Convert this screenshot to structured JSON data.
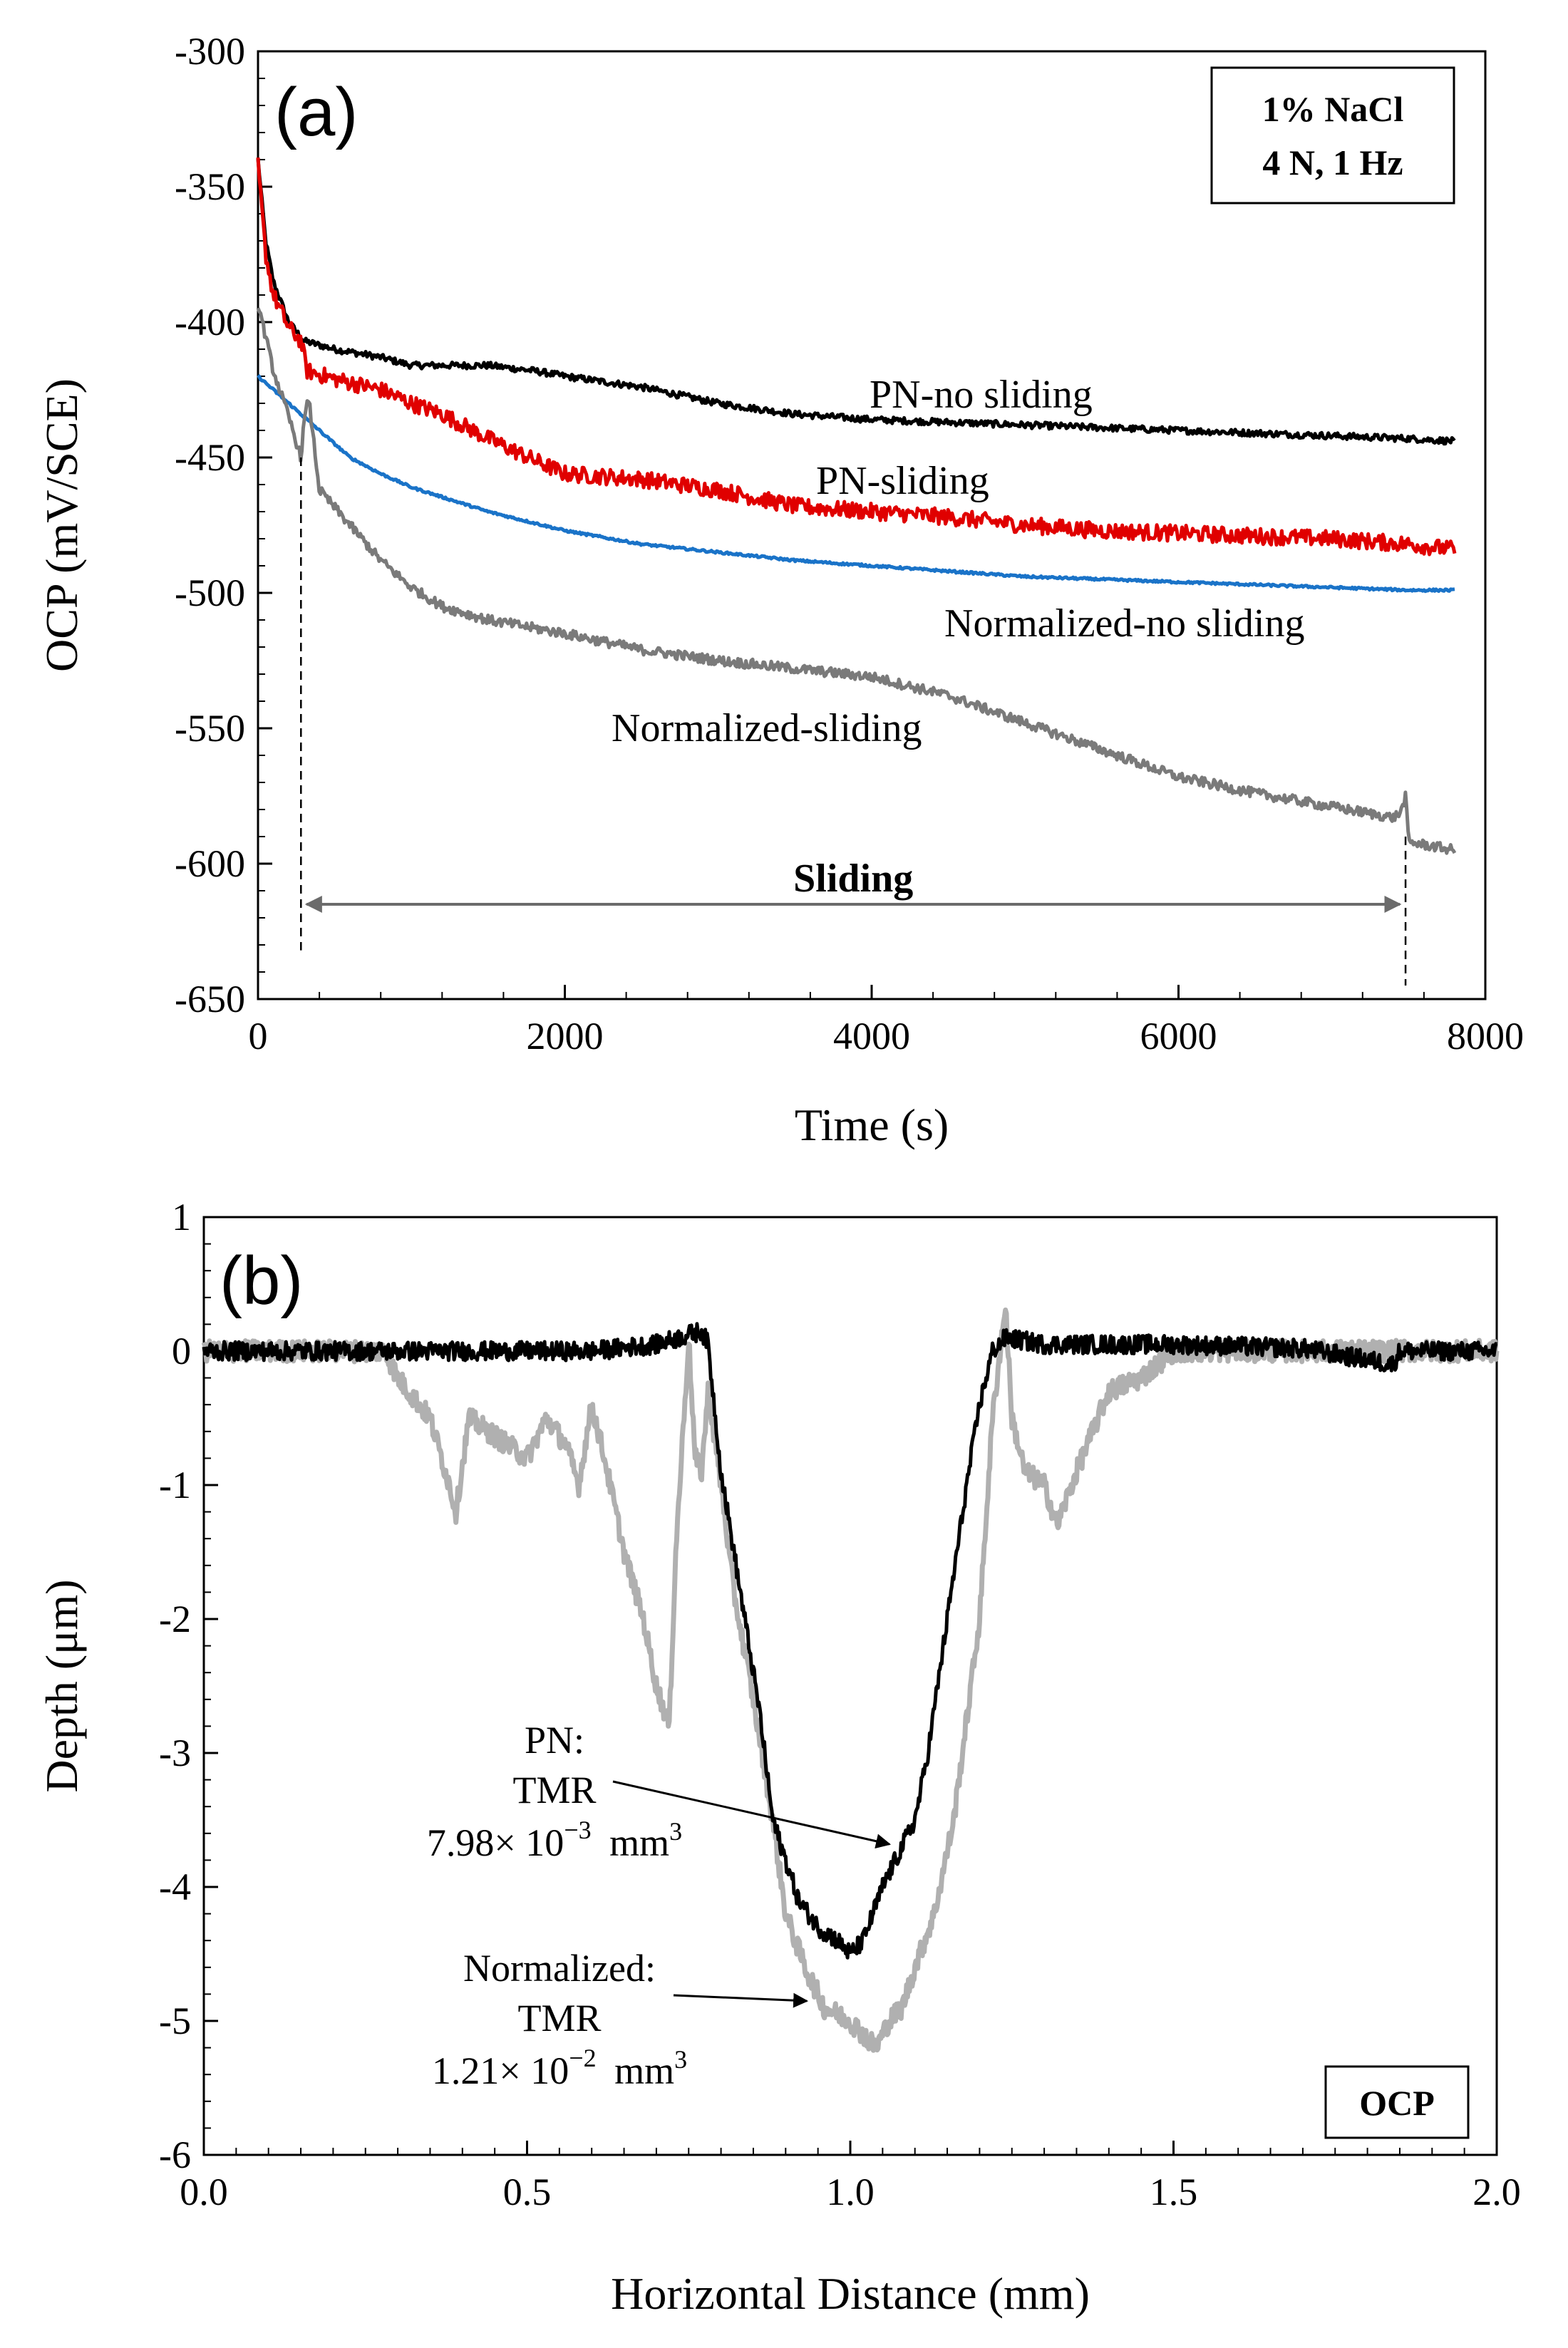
{
  "chart_data": [
    {
      "panel": "(a)",
      "type": "line",
      "xlabel": "Time (s)",
      "ylabel": "OCP (mV/SCE)",
      "xlim": [
        0,
        8000
      ],
      "ylim": [
        -650,
        -300
      ],
      "xticks": [
        0,
        2000,
        4000,
        6000,
        8000
      ],
      "yticks": [
        -300,
        -350,
        -400,
        -450,
        -500,
        -550,
        -600,
        -650
      ],
      "conditions": [
        "1% NaCl",
        "4 N, 1 Hz"
      ],
      "sliding_interval": {
        "label": "Sliding",
        "start": 280,
        "end": 7480
      },
      "series": [
        {
          "name": "PN-no sliding",
          "color": "#000000",
          "x": [
            0,
            50,
            100,
            200,
            300,
            500,
            800,
            1000,
            1200,
            1500,
            1800,
            2000,
            2500,
            3000,
            3500,
            4000,
            4500,
            5000,
            5500,
            6000,
            6500,
            7000,
            7500,
            7800
          ],
          "y": [
            -340,
            -370,
            -385,
            -400,
            -407,
            -410,
            -413,
            -416,
            -416,
            -416,
            -418,
            -420,
            -424,
            -430,
            -434,
            -436,
            -437,
            -438,
            -439,
            -440,
            -441,
            -442,
            -443,
            -444
          ]
        },
        {
          "name": "PN-sliding",
          "color": "#e00000",
          "x": [
            0,
            50,
            100,
            200,
            280,
            320,
            500,
            800,
            1000,
            1200,
            1500,
            1800,
            2000,
            2500,
            3000,
            3500,
            4000,
            4500,
            5000,
            5500,
            6000,
            6500,
            7000,
            7500,
            7800
          ],
          "y": [
            -342,
            -375,
            -390,
            -402,
            -407,
            -418,
            -421,
            -425,
            -430,
            -434,
            -443,
            -451,
            -456,
            -458,
            -462,
            -468,
            -470,
            -472,
            -475,
            -477,
            -478,
            -479,
            -480,
            -482,
            -484
          ]
        },
        {
          "name": "Normalized-no sliding",
          "color": "#1a73c8",
          "x": [
            0,
            200,
            400,
            600,
            800,
            1000,
            1500,
            2000,
            2500,
            3000,
            3500,
            4000,
            4500,
            5000,
            5500,
            6000,
            6500,
            7000,
            7500,
            7800
          ],
          "y": [
            -420,
            -430,
            -440,
            -450,
            -456,
            -461,
            -470,
            -477,
            -482,
            -485,
            -488,
            -490,
            -492,
            -494,
            -495,
            -496,
            -497,
            -498,
            -499,
            -499
          ]
        },
        {
          "name": "Normalized-sliding",
          "color": "#7a7a7a",
          "x": [
            0,
            100,
            200,
            280,
            300,
            330,
            400,
            600,
            800,
            1000,
            1200,
            1500,
            2000,
            2500,
            3000,
            3500,
            4000,
            4500,
            5000,
            5500,
            6000,
            6500,
            7000,
            7400,
            7450,
            7480,
            7500,
            7800
          ],
          "y": [
            -393,
            -418,
            -435,
            -450,
            -437,
            -428,
            -462,
            -475,
            -488,
            -498,
            -505,
            -510,
            -515,
            -521,
            -525,
            -528,
            -531,
            -538,
            -548,
            -558,
            -568,
            -574,
            -579,
            -583,
            -581,
            -575,
            -592,
            -595
          ]
        }
      ]
    },
    {
      "panel": "(b)",
      "type": "line",
      "xlabel": "Horizontal Distance (mm)",
      "ylabel": "Depth (μm)",
      "xlim": [
        0.0,
        2.0
      ],
      "ylim": [
        -6,
        1
      ],
      "xticks": [
        "0.0",
        "0.5",
        "1.0",
        "1.5",
        "2.0"
      ],
      "yticks": [
        1,
        0,
        -1,
        -2,
        -3,
        -4,
        -5,
        -6
      ],
      "test_label": "OCP",
      "series": [
        {
          "name": "PN",
          "color": "#000000",
          "x": [
            0.0,
            0.2,
            0.4,
            0.6,
            0.7,
            0.77,
            0.78,
            0.8,
            0.82,
            0.84,
            0.86,
            0.88,
            0.9,
            0.92,
            0.95,
            0.98,
            1.0,
            1.02,
            1.05,
            1.08,
            1.1,
            1.12,
            1.15,
            1.18,
            1.2,
            1.22,
            1.24,
            1.3,
            1.5,
            1.7,
            1.84,
            1.85,
            1.9,
            2.0
          ],
          "y": [
            0.0,
            0.0,
            0.0,
            0.0,
            0.05,
            0.15,
            0.05,
            -0.9,
            -1.5,
            -2.1,
            -2.7,
            -3.5,
            -3.8,
            -4.1,
            -4.3,
            -4.4,
            -4.5,
            -4.4,
            -4.0,
            -3.7,
            -3.5,
            -3.0,
            -2.0,
            -1.0,
            -0.4,
            0.0,
            0.1,
            0.05,
            0.05,
            0.02,
            -0.1,
            0.0,
            0.0,
            0.0
          ]
        },
        {
          "name": "Normalized",
          "color": "#b0b0b0",
          "x": [
            0.0,
            0.2,
            0.28,
            0.3,
            0.35,
            0.38,
            0.39,
            0.41,
            0.44,
            0.47,
            0.5,
            0.53,
            0.56,
            0.58,
            0.6,
            0.62,
            0.65,
            0.68,
            0.7,
            0.72,
            0.73,
            0.75,
            0.76,
            0.77,
            0.78,
            0.8,
            0.82,
            0.85,
            0.88,
            0.9,
            0.93,
            0.96,
            1.0,
            1.04,
            1.06,
            1.08,
            1.1,
            1.13,
            1.16,
            1.2,
            1.22,
            1.24,
            1.25,
            1.27,
            1.3,
            1.32,
            1.35,
            1.4,
            1.45,
            1.5,
            1.6,
            1.8,
            2.0
          ],
          "y": [
            0.0,
            0.0,
            0.0,
            -0.2,
            -0.5,
            -1.0,
            -1.2,
            -0.5,
            -0.6,
            -0.7,
            -0.8,
            -0.5,
            -0.7,
            -1.0,
            -0.4,
            -0.8,
            -1.5,
            -2.0,
            -2.5,
            -2.8,
            -1.5,
            0.1,
            -0.8,
            -0.9,
            -0.3,
            -1.0,
            -1.8,
            -2.6,
            -3.5,
            -4.2,
            -4.6,
            -4.9,
            -5.0,
            -5.2,
            -5.0,
            -4.9,
            -4.6,
            -4.2,
            -3.5,
            -2.0,
            -0.5,
            0.35,
            -0.5,
            -0.9,
            -1.0,
            -1.3,
            -0.9,
            -0.3,
            -0.2,
            0.0,
            0.0,
            0.0,
            0.0
          ]
        }
      ],
      "annotations": [
        {
          "series": "PN",
          "lines": [
            "PN:",
            "TMR"
          ],
          "value": "7.98× 10",
          "exponent": "−3",
          "unit": "mm",
          "unit_exp": "3"
        },
        {
          "series": "Normalized",
          "lines": [
            "Normalized:",
            "TMR"
          ],
          "value": "1.21× 10",
          "exponent": "−2",
          "unit": "mm",
          "unit_exp": "3"
        }
      ]
    }
  ]
}
